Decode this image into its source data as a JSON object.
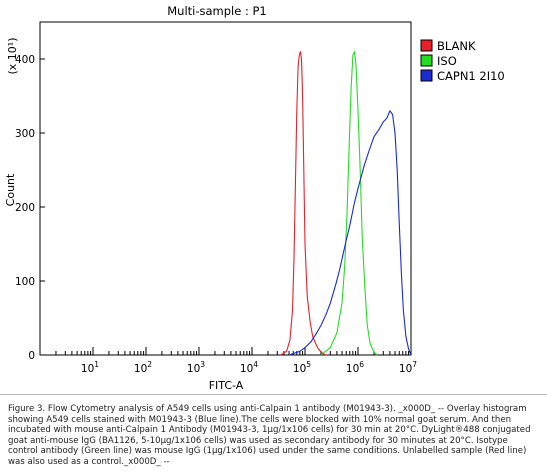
{
  "chart_data": {
    "type": "line",
    "title": "Multi-sample : P1",
    "xlabel": "FITC-A",
    "ylabel": "Count",
    "y_multiplier": "(x 10¹)",
    "x_scale": "log",
    "xlim": [
      1,
      10000000
    ],
    "ylim": [
      0,
      450
    ],
    "x_ticks": [
      {
        "value": 10,
        "base": "10",
        "exp": "1"
      },
      {
        "value": 100,
        "base": "10",
        "exp": "2"
      },
      {
        "value": 1000,
        "base": "10",
        "exp": "3"
      },
      {
        "value": 10000,
        "base": "10",
        "exp": "4"
      },
      {
        "value": 100000,
        "base": "10",
        "exp": "5"
      },
      {
        "value": 1000000,
        "base": "10",
        "exp": "6"
      },
      {
        "value": 10000000,
        "base": "10",
        "exp": "7"
      }
    ],
    "y_ticks": [
      "0",
      "100",
      "200",
      "300",
      "400"
    ],
    "y_tick_values": [
      0,
      100,
      200,
      300,
      400
    ],
    "grid": false,
    "legend_position": "top-right",
    "series": [
      {
        "name": "BLANK",
        "color": "#e8202a",
        "x": [
          35000,
          45000,
          52000,
          58000,
          62000,
          66000,
          70000,
          74000,
          78000,
          82000,
          86000,
          90000,
          95000,
          100000,
          110000,
          125000,
          140000,
          160000,
          180000,
          200000,
          230000,
          260000
        ],
        "y": [
          0,
          5,
          20,
          60,
          130,
          230,
          330,
          390,
          405,
          410,
          400,
          350,
          250,
          150,
          80,
          45,
          25,
          15,
          8,
          4,
          1,
          0
        ]
      },
      {
        "name": "ISO",
        "color": "#22dd22",
        "x": [
          200000,
          300000,
          400000,
          500000,
          560000,
          620000,
          680000,
          740000,
          800000,
          860000,
          920000,
          1000000,
          1100000,
          1200000,
          1350000,
          1500000,
          1700000,
          2000000,
          2300000
        ],
        "y": [
          0,
          10,
          30,
          70,
          120,
          190,
          280,
          360,
          405,
          410,
          390,
          330,
          250,
          160,
          90,
          40,
          15,
          4,
          0
        ]
      },
      {
        "name": "CAPN1 2I10",
        "color": "#1a2bd0",
        "x": [
          50000,
          80000,
          100000,
          130000,
          160000,
          200000,
          250000,
          300000,
          380000,
          450000,
          520000,
          600000,
          700000,
          850000,
          1000000,
          1300000,
          1600000,
          2000000,
          2500000,
          3000000,
          3500000,
          4000000,
          4500000,
          5000000,
          5500000,
          6000000,
          6600000,
          7200000,
          8000000,
          9000000,
          10000000
        ],
        "y": [
          0,
          5,
          10,
          18,
          28,
          40,
          55,
          70,
          95,
          115,
          135,
          155,
          175,
          205,
          225,
          255,
          275,
          295,
          305,
          315,
          320,
          330,
          325,
          300,
          250,
          180,
          110,
          60,
          25,
          8,
          0
        ]
      }
    ]
  },
  "caption": "Figure 3. Flow Cytometry analysis of A549 cells using anti-Calpain 1 antibody (M01943-3). _x000D_ -- Overlay histogram showing A549 cells stained with M01943-3 (Blue line).The cells were blocked with 10% normal goat serum. And then incubated with mouse anti-Calpain 1 Antibody (M01943-3, 1µg/1x106 cells) for 30 min at 20°C. DyLight®488 conjugated goat anti-mouse IgG (BA1126, 5-10µg/1x106 cells) was used as secondary antibody for 30 minutes at 20°C. Isotype control antibody (Green line) was mouse IgG (1µg/1x106) used under the same conditions. Unlabelled sample (Red line) was also used as a control._x000D_ --"
}
